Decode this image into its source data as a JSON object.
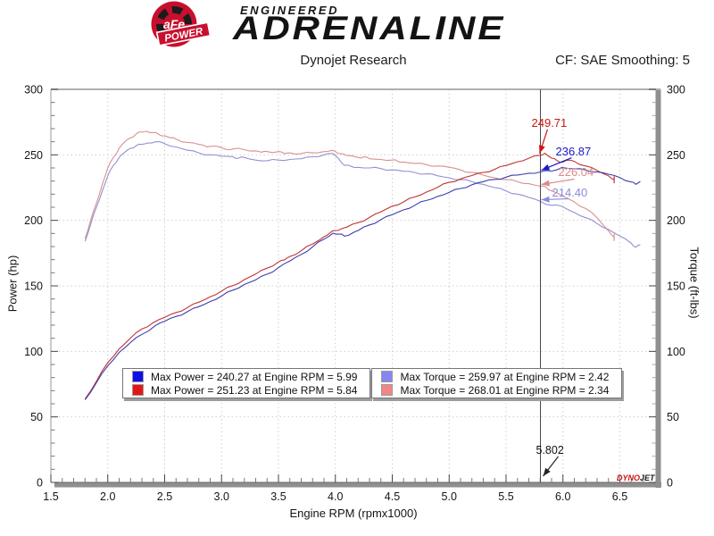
{
  "header": {
    "brand": {
      "badge_main": "aFe",
      "badge_ribbon": "POWER",
      "tagline_top": "ENGINEERED",
      "tagline_main": "ADRENALINE"
    },
    "title": "Dynojet Research",
    "correction": "CF: SAE Smoothing: 5"
  },
  "legend": {
    "groups": [
      [
        {
          "color": "#0f0fe8",
          "text": "Max Power = 240.27 at Engine RPM = 5.99"
        },
        {
          "color": "#e81414",
          "text": "Max Power = 251.23 at Engine RPM = 5.84"
        }
      ],
      [
        {
          "color": "#8686f2",
          "text": "Max Torque = 259.97 at Engine RPM = 2.42"
        },
        {
          "color": "#f28686",
          "text": "Max Torque = 268.01 at Engine RPM = 2.34"
        }
      ]
    ]
  },
  "watermark": {
    "part1": "DYNO",
    "part2": "JET"
  },
  "chart_data": {
    "type": "line",
    "title": "Dynojet Research",
    "xlabel": "Engine RPM (rpmx1000)",
    "ylabel_left": "Power (hp)",
    "ylabel_right": "Torque (ft-lbs)",
    "xlim": [
      1.5,
      6.8
    ],
    "ylim": [
      0,
      300
    ],
    "x_major_ticks": [
      1.5,
      2.0,
      2.5,
      3.0,
      3.5,
      4.0,
      4.5,
      5.0,
      5.5,
      6.0,
      6.5
    ],
    "y_major_ticks": [
      0,
      50,
      100,
      150,
      200,
      250,
      300
    ],
    "x_minor_step": 0.1,
    "y_minor_step": 10,
    "grid": "dotted",
    "legend_position": "bottom-center",
    "cursor": {
      "rpm": 5.802,
      "label": "5.802",
      "readouts": [
        {
          "series": "power-2",
          "value": 249.71,
          "label": "249.71",
          "color": "#cc1515"
        },
        {
          "series": "power-1",
          "value": 236.87,
          "label": "236.87",
          "color": "#1a1acc"
        },
        {
          "series": "torque-2",
          "value": 226.04,
          "label": "226.04",
          "color": "#dd8a8a"
        },
        {
          "series": "torque-1",
          "value": 214.4,
          "label": "214.40",
          "color": "#8a8add"
        }
      ]
    },
    "series": [
      {
        "id": "torque-2",
        "name": "Max Torque run (red)",
        "unit": "ft-lbs",
        "color": "#d89090",
        "max": 268.01,
        "max_rpm": 2.34,
        "end_tick": true,
        "points": [
          [
            1.8,
            186
          ],
          [
            1.85,
            200
          ],
          [
            1.9,
            213
          ],
          [
            1.95,
            227
          ],
          [
            2.0,
            240
          ],
          [
            2.05,
            248
          ],
          [
            2.1,
            255
          ],
          [
            2.15,
            260
          ],
          [
            2.2,
            263
          ],
          [
            2.25,
            266
          ],
          [
            2.3,
            267.5
          ],
          [
            2.34,
            268
          ],
          [
            2.4,
            267
          ],
          [
            2.45,
            265.5
          ],
          [
            2.5,
            264.5
          ],
          [
            2.55,
            263
          ],
          [
            2.6,
            262
          ],
          [
            2.7,
            259.5
          ],
          [
            2.8,
            258
          ],
          [
            2.85,
            257
          ],
          [
            2.9,
            256.5
          ],
          [
            3.0,
            255.5
          ],
          [
            3.05,
            254
          ],
          [
            3.1,
            254.5
          ],
          [
            3.2,
            254
          ],
          [
            3.3,
            253
          ],
          [
            3.35,
            252
          ],
          [
            3.4,
            252.5
          ],
          [
            3.5,
            252.5
          ],
          [
            3.55,
            251
          ],
          [
            3.6,
            251.5
          ],
          [
            3.7,
            251
          ],
          [
            3.8,
            251.5
          ],
          [
            3.9,
            252.5
          ],
          [
            3.95,
            253
          ],
          [
            4.0,
            252.5
          ],
          [
            4.05,
            251
          ],
          [
            4.1,
            249.5
          ],
          [
            4.2,
            248
          ],
          [
            4.25,
            248.5
          ],
          [
            4.3,
            247
          ],
          [
            4.4,
            246.5
          ],
          [
            4.5,
            246
          ],
          [
            4.55,
            245
          ],
          [
            4.6,
            244.5
          ],
          [
            4.7,
            243.5
          ],
          [
            4.8,
            242.5
          ],
          [
            4.9,
            241.5
          ],
          [
            5.0,
            240.5
          ],
          [
            5.1,
            238.5
          ],
          [
            5.2,
            236.5
          ],
          [
            5.3,
            234.5
          ],
          [
            5.4,
            232.5
          ],
          [
            5.5,
            231
          ],
          [
            5.6,
            229.5
          ],
          [
            5.7,
            228
          ],
          [
            5.802,
            226
          ],
          [
            5.85,
            225.5
          ],
          [
            5.9,
            222.5
          ],
          [
            6.0,
            218.5
          ],
          [
            6.1,
            214
          ],
          [
            6.2,
            209
          ],
          [
            6.3,
            202
          ],
          [
            6.4,
            192
          ],
          [
            6.45,
            187
          ]
        ]
      },
      {
        "id": "torque-1",
        "name": "Max Torque run (blue)",
        "unit": "ft-lbs",
        "color": "#9090d2",
        "max": 259.97,
        "max_rpm": 2.42,
        "end_tick": false,
        "points": [
          [
            1.8,
            184
          ],
          [
            1.85,
            197
          ],
          [
            1.9,
            210
          ],
          [
            1.95,
            222
          ],
          [
            2.0,
            234
          ],
          [
            2.05,
            242
          ],
          [
            2.1,
            248
          ],
          [
            2.15,
            252
          ],
          [
            2.2,
            255
          ],
          [
            2.25,
            257
          ],
          [
            2.3,
            258
          ],
          [
            2.35,
            259
          ],
          [
            2.42,
            260
          ],
          [
            2.5,
            258.5
          ],
          [
            2.6,
            256
          ],
          [
            2.7,
            253.5
          ],
          [
            2.8,
            251.5
          ],
          [
            2.9,
            250
          ],
          [
            3.0,
            249
          ],
          [
            3.1,
            248.5
          ],
          [
            3.15,
            247.5
          ],
          [
            3.2,
            248
          ],
          [
            3.3,
            246
          ],
          [
            3.4,
            245.5
          ],
          [
            3.5,
            246
          ],
          [
            3.6,
            246.5
          ],
          [
            3.7,
            247
          ],
          [
            3.8,
            248.5
          ],
          [
            3.9,
            250
          ],
          [
            3.98,
            251
          ],
          [
            4.03,
            247
          ],
          [
            4.08,
            242
          ],
          [
            4.15,
            240.8
          ],
          [
            4.2,
            240.5
          ],
          [
            4.3,
            240
          ],
          [
            4.4,
            239.5
          ],
          [
            4.5,
            238.5
          ],
          [
            4.6,
            237.5
          ],
          [
            4.7,
            236.5
          ],
          [
            4.8,
            235.5
          ],
          [
            4.9,
            234
          ],
          [
            5.0,
            232.5
          ],
          [
            5.1,
            231
          ],
          [
            5.2,
            229.5
          ],
          [
            5.3,
            227.5
          ],
          [
            5.4,
            225
          ],
          [
            5.5,
            222.5
          ],
          [
            5.6,
            220
          ],
          [
            5.7,
            217.5
          ],
          [
            5.802,
            214.4
          ],
          [
            5.9,
            211.5
          ],
          [
            5.99,
            210.7
          ],
          [
            6.1,
            206
          ],
          [
            6.2,
            202
          ],
          [
            6.3,
            197.5
          ],
          [
            6.4,
            193
          ],
          [
            6.5,
            188
          ],
          [
            6.6,
            182.5
          ],
          [
            6.64,
            179.5
          ],
          [
            6.68,
            181.5
          ]
        ]
      },
      {
        "id": "power-2",
        "name": "Max Power run (red)",
        "unit": "hp",
        "color": "#c03333",
        "max": 251.23,
        "max_rpm": 5.84,
        "end_tick": true,
        "points": [
          [
            1.8,
            63.7
          ],
          [
            1.9,
            77.1
          ],
          [
            2.0,
            91.4
          ],
          [
            2.1,
            101.9
          ],
          [
            2.2,
            110.2
          ],
          [
            2.3,
            117.1
          ],
          [
            2.4,
            122
          ],
          [
            2.5,
            125.9
          ],
          [
            2.6,
            129.7
          ],
          [
            2.7,
            133.4
          ],
          [
            2.8,
            137.5
          ],
          [
            2.9,
            141.6
          ],
          [
            3.0,
            146
          ],
          [
            3.1,
            150.2
          ],
          [
            3.2,
            154.8
          ],
          [
            3.3,
            159
          ],
          [
            3.4,
            163.5
          ],
          [
            3.5,
            168.3
          ],
          [
            3.55,
            169.7
          ],
          [
            3.6,
            172.4
          ],
          [
            3.7,
            176.8
          ],
          [
            3.8,
            182
          ],
          [
            3.9,
            187.5
          ],
          [
            3.95,
            190.3
          ],
          [
            4.0,
            192.3
          ],
          [
            4.05,
            193.5
          ],
          [
            4.1,
            194.8
          ],
          [
            4.2,
            198.3
          ],
          [
            4.3,
            202.2
          ],
          [
            4.4,
            206.5
          ],
          [
            4.5,
            210.8
          ],
          [
            4.6,
            214.1
          ],
          [
            4.7,
            217.9
          ],
          [
            4.8,
            221.6
          ],
          [
            4.9,
            225.3
          ],
          [
            5.0,
            229
          ],
          [
            5.1,
            231.6
          ],
          [
            5.2,
            234.2
          ],
          [
            5.3,
            236.6
          ],
          [
            5.4,
            239
          ],
          [
            5.5,
            241.9
          ],
          [
            5.6,
            244.7
          ],
          [
            5.7,
            247.4
          ],
          [
            5.802,
            249.7
          ],
          [
            5.84,
            251.2
          ],
          [
            5.9,
            247.5
          ],
          [
            5.95,
            245.5
          ],
          [
            6.0,
            244.5
          ],
          [
            6.05,
            246
          ],
          [
            6.1,
            245
          ],
          [
            6.2,
            241.5
          ],
          [
            6.3,
            238
          ],
          [
            6.4,
            234
          ],
          [
            6.45,
            231
          ]
        ]
      },
      {
        "id": "power-1",
        "name": "Max Power run (blue)",
        "unit": "hp",
        "color": "#3c3cae",
        "max": 240.27,
        "max_rpm": 5.99,
        "end_tick": false,
        "points": [
          [
            1.8,
            63
          ],
          [
            1.9,
            76
          ],
          [
            2.0,
            89
          ],
          [
            2.1,
            99.2
          ],
          [
            2.2,
            106.8
          ],
          [
            2.3,
            113
          ],
          [
            2.42,
            119.8
          ],
          [
            2.5,
            123
          ],
          [
            2.6,
            126.7
          ],
          [
            2.7,
            130.3
          ],
          [
            2.8,
            134.1
          ],
          [
            2.9,
            138.1
          ],
          [
            3.0,
            142.2
          ],
          [
            3.1,
            146.7
          ],
          [
            3.2,
            151.1
          ],
          [
            3.3,
            154.6
          ],
          [
            3.4,
            158.9
          ],
          [
            3.5,
            163.9
          ],
          [
            3.6,
            169
          ],
          [
            3.7,
            174
          ],
          [
            3.8,
            179.8
          ],
          [
            3.9,
            185.6
          ],
          [
            3.98,
            190.2
          ],
          [
            4.03,
            189.5
          ],
          [
            4.08,
            188
          ],
          [
            4.15,
            190.3
          ],
          [
            4.2,
            192.3
          ],
          [
            4.3,
            196.5
          ],
          [
            4.4,
            200.6
          ],
          [
            4.5,
            204.3
          ],
          [
            4.6,
            208
          ],
          [
            4.7,
            211.6
          ],
          [
            4.8,
            215.2
          ],
          [
            4.9,
            218.3
          ],
          [
            5.0,
            221.3
          ],
          [
            5.1,
            224.3
          ],
          [
            5.2,
            227.2
          ],
          [
            5.3,
            229.6
          ],
          [
            5.4,
            231.3
          ],
          [
            5.5,
            233
          ],
          [
            5.6,
            234.6
          ],
          [
            5.7,
            236
          ],
          [
            5.802,
            236.9
          ],
          [
            5.9,
            237.6
          ],
          [
            5.99,
            240.3
          ],
          [
            6.1,
            239.3
          ],
          [
            6.2,
            238.4
          ],
          [
            6.3,
            236.9
          ],
          [
            6.4,
            235.2
          ],
          [
            6.5,
            232.7
          ],
          [
            6.6,
            229.3
          ],
          [
            6.64,
            227.5
          ],
          [
            6.68,
            229.8
          ]
        ]
      }
    ]
  }
}
